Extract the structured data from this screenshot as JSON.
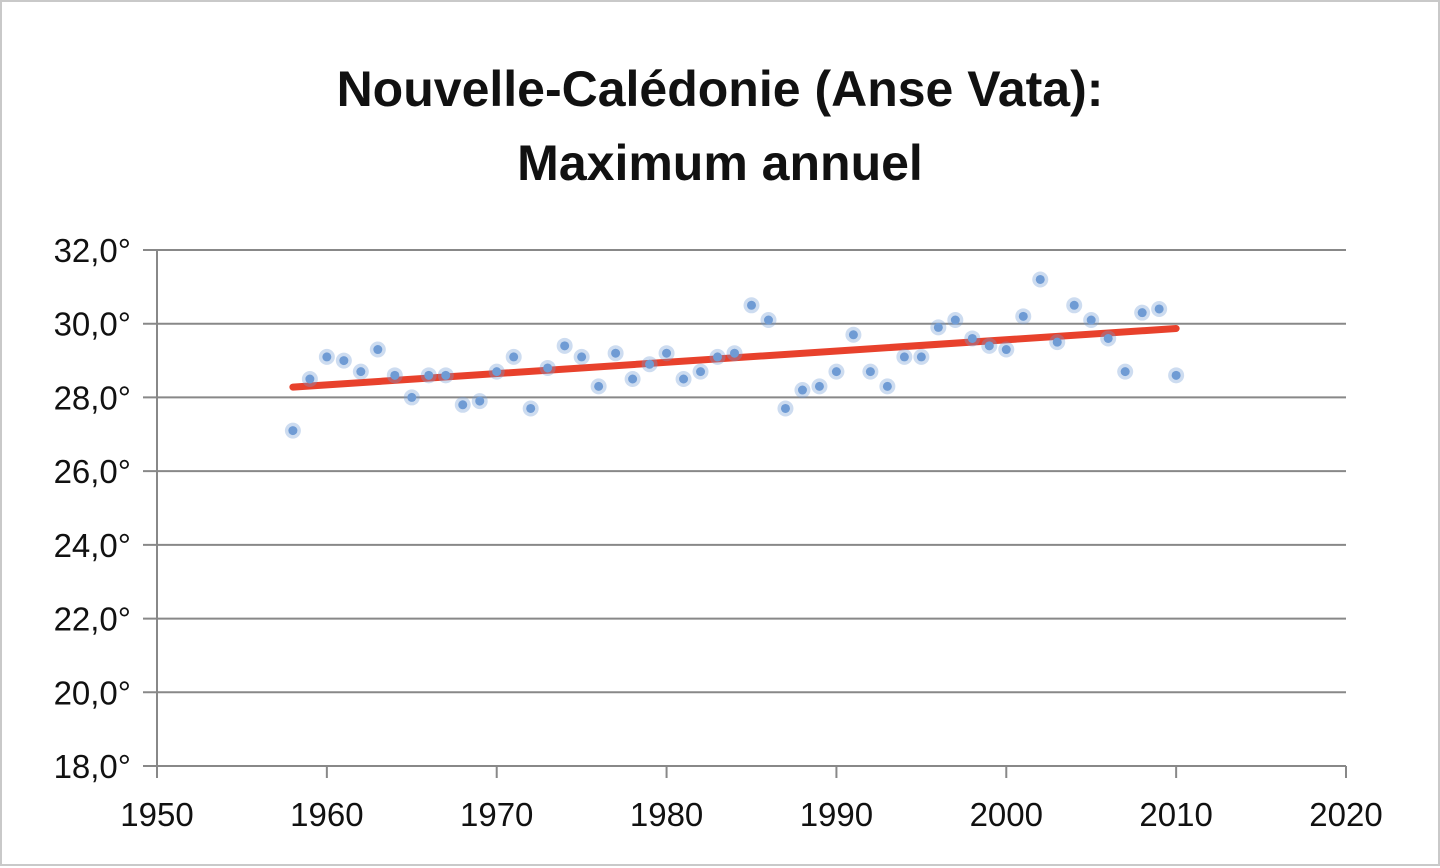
{
  "chart_data": {
    "type": "scatter",
    "title_lines": [
      "Nouvelle-Calédonie (Anse Vata):",
      "Maximum annuel"
    ],
    "xlabel": "",
    "ylabel": "",
    "xlim": [
      1950,
      2020
    ],
    "ylim": [
      18,
      32
    ],
    "x_ticks": [
      1950,
      1960,
      1970,
      1980,
      1990,
      2000,
      2010,
      2020
    ],
    "x_tick_labels": [
      "1950",
      "1960",
      "1970",
      "1980",
      "1990",
      "2000",
      "2010",
      "2020"
    ],
    "y_ticks": [
      18,
      20,
      22,
      24,
      26,
      28,
      30,
      32
    ],
    "y_tick_labels": [
      "18,0°",
      "20,0°",
      "22,0°",
      "24,0°",
      "26,0°",
      "28,0°",
      "30,0°",
      "32,0°"
    ],
    "grid": "horizontal",
    "series": [
      {
        "type": "scatter",
        "color": "#6f9bd4",
        "points": [
          [
            1958,
            27.1
          ],
          [
            1959,
            28.5
          ],
          [
            1960,
            29.1
          ],
          [
            1961,
            29.0
          ],
          [
            1962,
            28.7
          ],
          [
            1963,
            29.3
          ],
          [
            1964,
            28.6
          ],
          [
            1965,
            28.0
          ],
          [
            1966,
            28.6
          ],
          [
            1967,
            28.6
          ],
          [
            1968,
            27.8
          ],
          [
            1969,
            27.9
          ],
          [
            1970,
            28.7
          ],
          [
            1971,
            29.1
          ],
          [
            1972,
            27.7
          ],
          [
            1973,
            28.8
          ],
          [
            1974,
            29.4
          ],
          [
            1975,
            29.1
          ],
          [
            1976,
            28.3
          ],
          [
            1977,
            29.2
          ],
          [
            1978,
            28.5
          ],
          [
            1979,
            28.9
          ],
          [
            1980,
            29.2
          ],
          [
            1981,
            28.5
          ],
          [
            1982,
            28.7
          ],
          [
            1983,
            29.1
          ],
          [
            1984,
            29.2
          ],
          [
            1985,
            30.5
          ],
          [
            1986,
            30.1
          ],
          [
            1987,
            27.7
          ],
          [
            1988,
            28.2
          ],
          [
            1989,
            28.3
          ],
          [
            1990,
            28.7
          ],
          [
            1991,
            29.7
          ],
          [
            1992,
            28.7
          ],
          [
            1993,
            28.3
          ],
          [
            1994,
            29.1
          ],
          [
            1995,
            29.1
          ],
          [
            1996,
            29.9
          ],
          [
            1997,
            30.1
          ],
          [
            1998,
            29.6
          ],
          [
            1999,
            29.4
          ],
          [
            2000,
            29.3
          ],
          [
            2001,
            30.2
          ],
          [
            2002,
            31.2
          ],
          [
            2003,
            29.5
          ],
          [
            2004,
            30.5
          ],
          [
            2005,
            30.1
          ],
          [
            2006,
            29.6
          ],
          [
            2007,
            28.7
          ],
          [
            2008,
            30.3
          ],
          [
            2009,
            30.4
          ],
          [
            2010,
            28.6
          ]
        ]
      },
      {
        "type": "trendline",
        "color": "#e8412c",
        "points": [
          [
            1958,
            28.28
          ],
          [
            2010,
            29.87
          ]
        ]
      }
    ],
    "axis_color": "#888888",
    "grid_color": "#888888"
  }
}
